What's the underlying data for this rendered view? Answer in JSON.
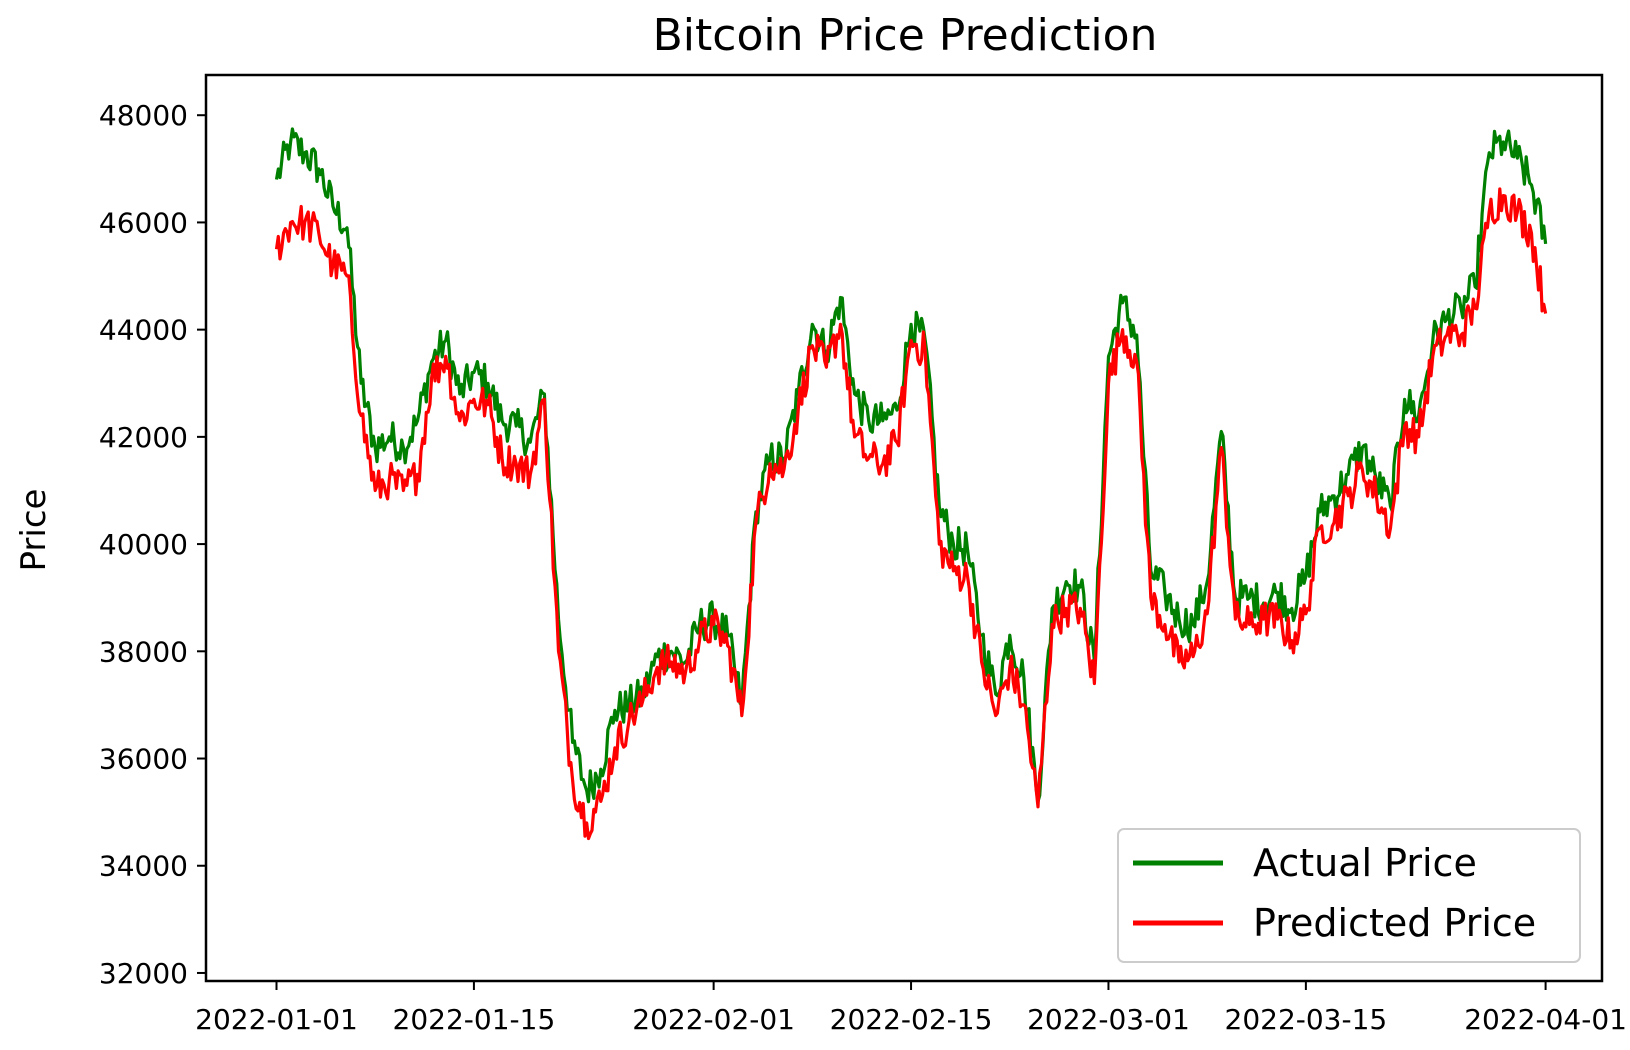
{
  "chart_data": {
    "type": "line",
    "title": "Bitcoin Price Prediction",
    "xlabel": "",
    "ylabel": "Price",
    "x_ticks": [
      "2022-01-01",
      "2022-01-15",
      "2022-02-01",
      "2022-02-15",
      "2022-03-01",
      "2022-03-15",
      "2022-04-01"
    ],
    "y_ticks": [
      "32000",
      "34000",
      "36000",
      "38000",
      "40000",
      "42000",
      "44000",
      "46000",
      "48000"
    ],
    "xlim": [
      "2021-12-27",
      "2022-04-05"
    ],
    "ylim": [
      31850,
      48750
    ],
    "grid": false,
    "legend_position": "lower-right",
    "colors": {
      "actual": "#008000",
      "predicted": "#ff0000"
    },
    "x": [
      "2022-01-01",
      "2022-01-02",
      "2022-01-03",
      "2022-01-04",
      "2022-01-05",
      "2022-01-06",
      "2022-01-07",
      "2022-01-08",
      "2022-01-09",
      "2022-01-10",
      "2022-01-11",
      "2022-01-12",
      "2022-01-13",
      "2022-01-14",
      "2022-01-15",
      "2022-01-16",
      "2022-01-17",
      "2022-01-18",
      "2022-01-19",
      "2022-01-20",
      "2022-01-21",
      "2022-01-22",
      "2022-01-23",
      "2022-01-24",
      "2022-01-25",
      "2022-01-26",
      "2022-01-27",
      "2022-01-28",
      "2022-01-29",
      "2022-01-30",
      "2022-01-31",
      "2022-02-01",
      "2022-02-02",
      "2022-02-03",
      "2022-02-04",
      "2022-02-05",
      "2022-02-06",
      "2022-02-07",
      "2022-02-08",
      "2022-02-09",
      "2022-02-10",
      "2022-02-11",
      "2022-02-12",
      "2022-02-13",
      "2022-02-14",
      "2022-02-15",
      "2022-02-16",
      "2022-02-17",
      "2022-02-18",
      "2022-02-19",
      "2022-02-20",
      "2022-02-21",
      "2022-02-22",
      "2022-02-23",
      "2022-02-24",
      "2022-02-25",
      "2022-02-26",
      "2022-02-27",
      "2022-02-28",
      "2022-03-01",
      "2022-03-02",
      "2022-03-03",
      "2022-03-04",
      "2022-03-05",
      "2022-03-06",
      "2022-03-07",
      "2022-03-08",
      "2022-03-09",
      "2022-03-10",
      "2022-03-11",
      "2022-03-12",
      "2022-03-13",
      "2022-03-14",
      "2022-03-15",
      "2022-03-16",
      "2022-03-17",
      "2022-03-18",
      "2022-03-19",
      "2022-03-20",
      "2022-03-21",
      "2022-03-22",
      "2022-03-23",
      "2022-03-24",
      "2022-03-25",
      "2022-03-26",
      "2022-03-27",
      "2022-03-28",
      "2022-03-29",
      "2022-03-30",
      "2022-03-31",
      "2022-04-01"
    ],
    "series": [
      {
        "name": "Actual Price",
        "values": [
          46800,
          47500,
          47300,
          47000,
          46300,
          45900,
          43000,
          41800,
          42000,
          41800,
          42300,
          43400,
          43800,
          42800,
          43200,
          43000,
          42300,
          42200,
          41900,
          42800,
          38600,
          36300,
          35400,
          35800,
          36900,
          37000,
          37200,
          37900,
          38000,
          37800,
          38500,
          38600,
          38300,
          37000,
          40600,
          41600,
          41600,
          42800,
          44100,
          43600,
          44600,
          42800,
          42300,
          42300,
          42500,
          44100,
          43800,
          40700,
          40000,
          39900,
          38300,
          37200,
          38300,
          37500,
          35200,
          38800,
          39300,
          39200,
          37800,
          43500,
          44500,
          43900,
          39500,
          39100,
          38600,
          38500,
          39300,
          42100,
          39000,
          39000,
          38900,
          39100,
          38800,
          39400,
          40600,
          40900,
          41300,
          41800,
          41200,
          40700,
          42700,
          42400,
          43800,
          44200,
          44400,
          44800,
          47300,
          47500,
          47200,
          46700,
          45600
        ]
      },
      {
        "name": "Predicted Price",
        "values": [
          45500,
          46000,
          46000,
          45800,
          45200,
          45000,
          42400,
          41000,
          41200,
          41000,
          41300,
          43100,
          43500,
          42300,
          42700,
          42600,
          41600,
          41500,
          41300,
          42700,
          38000,
          35600,
          34800,
          35200,
          36200,
          36700,
          37100,
          37700,
          37800,
          37600,
          38200,
          38500,
          38100,
          36800,
          40400,
          41500,
          41400,
          42500,
          43700,
          43300,
          44100,
          42000,
          41600,
          41500,
          41900,
          43800,
          43600,
          40000,
          39500,
          39400,
          37800,
          36800,
          37700,
          37000,
          35100,
          38500,
          38800,
          38800,
          37400,
          43000,
          44000,
          43400,
          39000,
          38500,
          37800,
          37900,
          38700,
          41800,
          38600,
          38500,
          38600,
          38600,
          38200,
          38700,
          40300,
          40400,
          40900,
          41400,
          40900,
          40300,
          42200,
          42000,
          43500,
          43900,
          43900,
          44400,
          46200,
          46500,
          46200,
          45800,
          44300
        ]
      }
    ]
  }
}
